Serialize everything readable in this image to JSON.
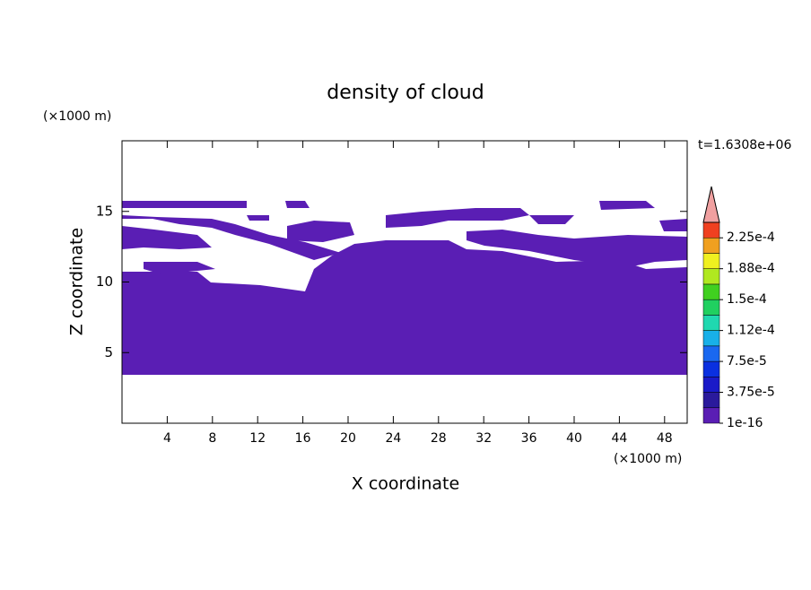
{
  "chart_data": {
    "type": "contour",
    "title": "density of cloud",
    "time_label": "t=1.6308e+06",
    "x_label": "X coordinate",
    "y_label": "Z coordinate",
    "x_unit": "(×1000 m)",
    "y_unit": "(×1000 m)",
    "xlim": [
      0,
      50
    ],
    "ylim": [
      0,
      20
    ],
    "xticks": [
      4,
      8,
      12,
      16,
      20,
      24,
      28,
      32,
      36,
      40,
      44,
      48
    ],
    "yticks": [
      5,
      10,
      15
    ],
    "colorbar": {
      "lim": [
        1e-16,
        0.00024375
      ],
      "colors": [
        "#5a1eb4",
        "#2a1a9c",
        "#1a1ac8",
        "#0a30e0",
        "#1a68f0",
        "#18b0e8",
        "#20d8b0",
        "#20d060",
        "#40d020",
        "#b0e820",
        "#f0f020",
        "#f0a020",
        "#f04020"
      ],
      "extend_color": "#f0a0a0",
      "ticks": [
        {
          "value": 1e-16,
          "label": "1e-16"
        },
        {
          "value": 3.75e-05,
          "label": "3.75e-5"
        },
        {
          "value": 7.5e-05,
          "label": "7.5e-5"
        },
        {
          "value": 0.0001125,
          "label": "1.12e-4"
        },
        {
          "value": 0.00015,
          "label": "1.5e-4"
        },
        {
          "value": 0.0001875,
          "label": "1.88e-4"
        },
        {
          "value": 0.000225,
          "label": "2.25e-4"
        }
      ]
    }
  }
}
